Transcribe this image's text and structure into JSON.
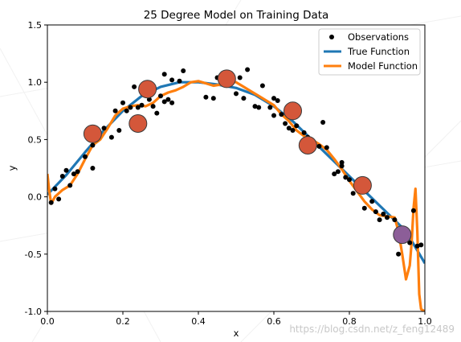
{
  "chart_data": {
    "type": "scatter",
    "title": "25 Degree Model on Training Data",
    "xlabel": "x",
    "ylabel": "y",
    "xlim": [
      0.0,
      1.0
    ],
    "ylim": [
      -1.0,
      1.5
    ],
    "xticks": [
      "0.0",
      "0.2",
      "0.4",
      "0.6",
      "0.8",
      "1.0"
    ],
    "yticks": [
      "1.5",
      "1.0",
      "0.5",
      "0.0",
      "-0.5",
      "-1.0"
    ],
    "xtick_values": [
      0.0,
      0.2,
      0.4,
      0.6,
      0.8,
      1.0
    ],
    "ytick_values": [
      1.5,
      1.0,
      0.5,
      0.0,
      -0.5,
      -1.0
    ],
    "legend": {
      "position": "top-right",
      "entries": [
        {
          "label": "Observations",
          "marker": "dot",
          "color": "#000000"
        },
        {
          "label": "True Function",
          "marker": "line",
          "color": "#1f77b4"
        },
        {
          "label": "Model Function",
          "marker": "line",
          "color": "#ff7f0e"
        }
      ]
    },
    "series": [
      {
        "name": "Observations",
        "kind": "scatter",
        "color": "#000000",
        "points": [
          [
            0.01,
            -0.05
          ],
          [
            0.02,
            0.07
          ],
          [
            0.03,
            -0.02
          ],
          [
            0.04,
            0.18
          ],
          [
            0.05,
            0.23
          ],
          [
            0.06,
            0.1
          ],
          [
            0.07,
            0.2
          ],
          [
            0.08,
            0.22
          ],
          [
            0.1,
            0.35
          ],
          [
            0.12,
            0.45
          ],
          [
            0.12,
            0.25
          ],
          [
            0.13,
            0.5
          ],
          [
            0.15,
            0.6
          ],
          [
            0.17,
            0.52
          ],
          [
            0.18,
            0.75
          ],
          [
            0.19,
            0.58
          ],
          [
            0.2,
            0.82
          ],
          [
            0.21,
            0.75
          ],
          [
            0.22,
            0.78
          ],
          [
            0.23,
            0.96
          ],
          [
            0.24,
            0.78
          ],
          [
            0.25,
            0.8
          ],
          [
            0.26,
            0.9
          ],
          [
            0.27,
            0.85
          ],
          [
            0.28,
            0.79
          ],
          [
            0.29,
            0.73
          ],
          [
            0.3,
            0.88
          ],
          [
            0.31,
            1.07
          ],
          [
            0.31,
            0.83
          ],
          [
            0.32,
            0.85
          ],
          [
            0.33,
            1.02
          ],
          [
            0.33,
            0.82
          ],
          [
            0.35,
            1.01
          ],
          [
            0.36,
            1.1
          ],
          [
            0.42,
            0.87
          ],
          [
            0.44,
            0.86
          ],
          [
            0.45,
            1.04
          ],
          [
            0.48,
            1.04
          ],
          [
            0.5,
            0.9
          ],
          [
            0.51,
            1.04
          ],
          [
            0.52,
            0.86
          ],
          [
            0.53,
            1.11
          ],
          [
            0.55,
            0.79
          ],
          [
            0.56,
            0.78
          ],
          [
            0.57,
            0.97
          ],
          [
            0.59,
            0.78
          ],
          [
            0.6,
            0.86
          ],
          [
            0.6,
            0.71
          ],
          [
            0.61,
            0.84
          ],
          [
            0.62,
            0.72
          ],
          [
            0.63,
            0.64
          ],
          [
            0.64,
            0.6
          ],
          [
            0.65,
            0.58
          ],
          [
            0.66,
            0.62
          ],
          [
            0.68,
            0.56
          ],
          [
            0.69,
            0.52
          ],
          [
            0.7,
            0.47
          ],
          [
            0.72,
            0.44
          ],
          [
            0.73,
            0.65
          ],
          [
            0.74,
            0.43
          ],
          [
            0.76,
            0.2
          ],
          [
            0.77,
            0.22
          ],
          [
            0.78,
            0.3
          ],
          [
            0.78,
            0.27
          ],
          [
            0.79,
            0.17
          ],
          [
            0.8,
            0.15
          ],
          [
            0.81,
            0.03
          ],
          [
            0.83,
            0.07
          ],
          [
            0.84,
            -0.1
          ],
          [
            0.86,
            -0.04
          ],
          [
            0.87,
            -0.13
          ],
          [
            0.88,
            -0.2
          ],
          [
            0.89,
            -0.15
          ],
          [
            0.9,
            -0.18
          ],
          [
            0.92,
            -0.2
          ],
          [
            0.93,
            -0.5
          ],
          [
            0.94,
            -0.35
          ],
          [
            0.96,
            -0.4
          ],
          [
            0.97,
            -0.12
          ],
          [
            0.98,
            -0.43
          ],
          [
            0.99,
            -0.42
          ]
        ]
      },
      {
        "name": "True Function",
        "kind": "line",
        "color": "#1f77b4",
        "points": [
          [
            0.0,
            0.02
          ],
          [
            0.05,
            0.19
          ],
          [
            0.1,
            0.39
          ],
          [
            0.15,
            0.58
          ],
          [
            0.2,
            0.75
          ],
          [
            0.25,
            0.88
          ],
          [
            0.3,
            0.96
          ],
          [
            0.35,
            1.0
          ],
          [
            0.4,
            1.0
          ],
          [
            0.45,
            0.98
          ],
          [
            0.5,
            0.95
          ],
          [
            0.55,
            0.89
          ],
          [
            0.6,
            0.79
          ],
          [
            0.65,
            0.66
          ],
          [
            0.7,
            0.5
          ],
          [
            0.75,
            0.34
          ],
          [
            0.8,
            0.18
          ],
          [
            0.85,
            0.02
          ],
          [
            0.9,
            -0.14
          ],
          [
            0.95,
            -0.3
          ],
          [
            1.0,
            -0.58
          ]
        ]
      },
      {
        "name": "Model Function",
        "kind": "line",
        "color": "#ff7f0e",
        "points": [
          [
            0.0,
            0.2
          ],
          [
            0.005,
            0.05
          ],
          [
            0.01,
            -0.06
          ],
          [
            0.02,
            0.0
          ],
          [
            0.04,
            0.06
          ],
          [
            0.06,
            0.1
          ],
          [
            0.08,
            0.2
          ],
          [
            0.1,
            0.33
          ],
          [
            0.12,
            0.45
          ],
          [
            0.14,
            0.5
          ],
          [
            0.16,
            0.6
          ],
          [
            0.18,
            0.71
          ],
          [
            0.2,
            0.77
          ],
          [
            0.22,
            0.79
          ],
          [
            0.24,
            0.8
          ],
          [
            0.26,
            0.79
          ],
          [
            0.28,
            0.82
          ],
          [
            0.3,
            0.88
          ],
          [
            0.32,
            0.91
          ],
          [
            0.34,
            0.93
          ],
          [
            0.36,
            0.96
          ],
          [
            0.38,
            1.0
          ],
          [
            0.4,
            1.01
          ],
          [
            0.42,
            0.99
          ],
          [
            0.44,
            0.97
          ],
          [
            0.46,
            0.98
          ],
          [
            0.48,
            1.01
          ],
          [
            0.5,
            1.0
          ],
          [
            0.52,
            0.96
          ],
          [
            0.54,
            0.92
          ],
          [
            0.56,
            0.88
          ],
          [
            0.58,
            0.84
          ],
          [
            0.6,
            0.8
          ],
          [
            0.62,
            0.72
          ],
          [
            0.64,
            0.66
          ],
          [
            0.66,
            0.58
          ],
          [
            0.68,
            0.53
          ],
          [
            0.7,
            0.5
          ],
          [
            0.72,
            0.46
          ],
          [
            0.74,
            0.41
          ],
          [
            0.76,
            0.33
          ],
          [
            0.78,
            0.24
          ],
          [
            0.8,
            0.14
          ],
          [
            0.82,
            0.05
          ],
          [
            0.84,
            -0.04
          ],
          [
            0.86,
            -0.11
          ],
          [
            0.88,
            -0.16
          ],
          [
            0.9,
            -0.17
          ],
          [
            0.92,
            -0.18
          ],
          [
            0.93,
            -0.3
          ],
          [
            0.94,
            -0.5
          ],
          [
            0.95,
            -0.72
          ],
          [
            0.96,
            -0.6
          ],
          [
            0.965,
            -0.4
          ],
          [
            0.97,
            -0.1
          ],
          [
            0.975,
            0.07
          ],
          [
            0.98,
            -0.3
          ],
          [
            0.985,
            -0.85
          ],
          [
            0.99,
            -0.98
          ],
          [
            1.0,
            -1.0
          ]
        ]
      },
      {
        "name": "Highlighted points",
        "kind": "markers",
        "color": "#d4573a",
        "points": [
          [
            0.12,
            0.55
          ],
          [
            0.24,
            0.64
          ],
          [
            0.265,
            0.94
          ],
          [
            0.475,
            1.03
          ],
          [
            0.65,
            0.75
          ],
          [
            0.69,
            0.45
          ],
          [
            0.835,
            0.1
          ]
        ]
      },
      {
        "name": "Highlighted point",
        "kind": "markers",
        "color": "#8c5e98",
        "points": [
          [
            0.94,
            -0.33
          ]
        ]
      }
    ]
  },
  "watermark": "https://blog.csdn.net/z_feng12489"
}
